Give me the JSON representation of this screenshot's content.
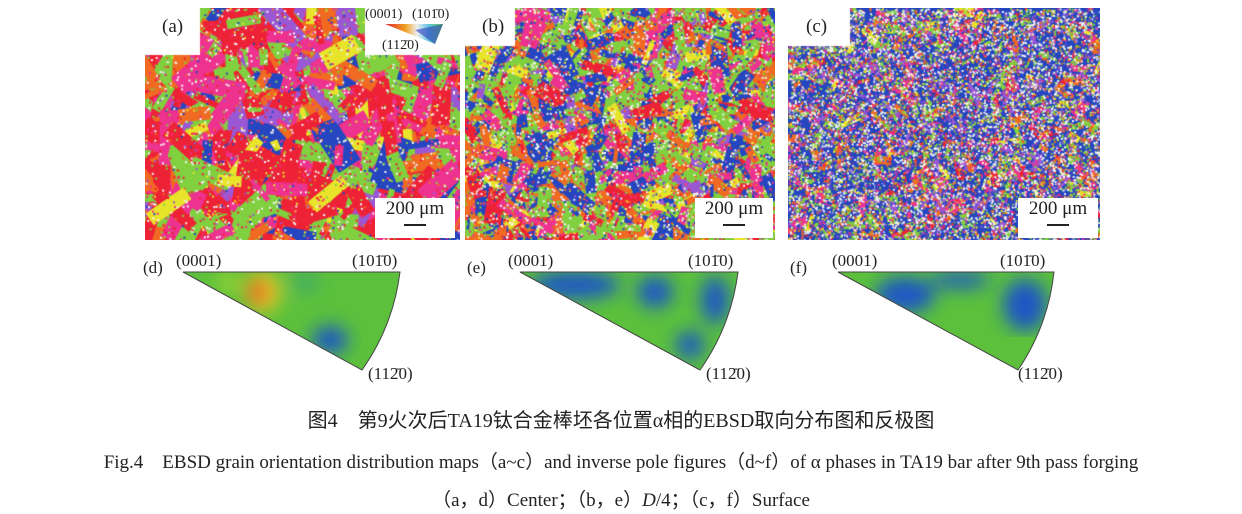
{
  "panels": {
    "a": {
      "label": "(a)",
      "scale": "200 μm"
    },
    "b": {
      "label": "(b)",
      "scale": "200 μm"
    },
    "c": {
      "label": "(c)",
      "scale": "200 μm"
    },
    "d": {
      "label": "(d)"
    },
    "e": {
      "label": "(e)"
    },
    "f": {
      "label": "(f)"
    }
  },
  "legend": {
    "top_left": "(0001)",
    "top_right": "(101̄0)",
    "bottom": "(112̄0)"
  },
  "ipf_labels": {
    "apex": "(0001)",
    "right": "(101̄0)",
    "bottom": "(112̄0)"
  },
  "colors": {
    "red": "#ee2236",
    "magenta": "#ee3290",
    "green": "#80d040",
    "blue": "#2546c0",
    "orange": "#f06a22",
    "yellow": "#e8e42a",
    "purple": "#9a58d4",
    "ipf_green": "#5cc03c",
    "ipf_blue": "#1f56c4"
  },
  "caption": {
    "zh": "图4　第9火次后TA19钛合金棒坯各位置α相的EBSD取向分布图和反极图",
    "en": "Fig.4　EBSD grain orientation distribution maps（a~c）and inverse pole figures（d~f）of α phases in TA19 bar after 9th pass forging",
    "key_pre": "（a，d）Center；（b，e）",
    "key_d": "D",
    "key_mid": "/4；（c，f）Surface"
  }
}
